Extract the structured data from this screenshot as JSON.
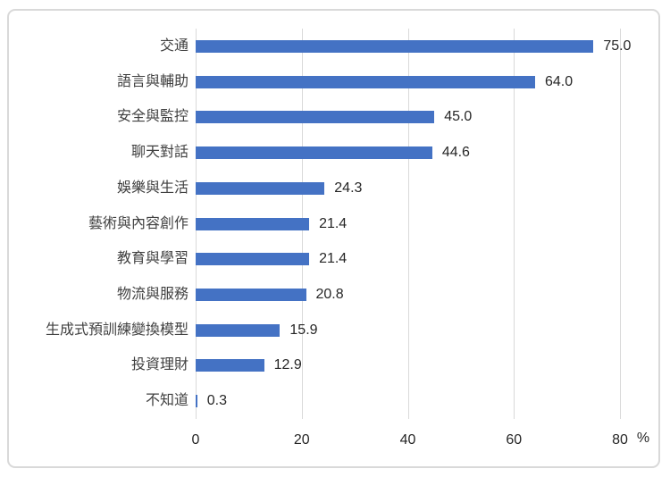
{
  "chart_data": {
    "type": "bar",
    "orientation": "horizontal",
    "categories": [
      "交通",
      "語言與輔助",
      "安全與監控",
      "聊天對話",
      "娛樂與生活",
      "藝術與內容創作",
      "教育與學習",
      "物流與服務",
      "生成式預訓練變換模型",
      "投資理財",
      "不知道"
    ],
    "values": [
      75.0,
      64.0,
      45.0,
      44.6,
      24.3,
      21.4,
      21.4,
      20.8,
      15.9,
      12.9,
      0.3
    ],
    "value_labels": [
      "75.0",
      "64.0",
      "45.0",
      "44.6",
      "24.3",
      "21.4",
      "21.4",
      "20.8",
      "15.9",
      "12.9",
      "0.3"
    ],
    "x_ticks": [
      "0",
      "20",
      "40",
      "60",
      "80"
    ],
    "x_tick_values": [
      0,
      20,
      40,
      60,
      80
    ],
    "xlim": [
      0,
      80
    ],
    "xlabel": "%",
    "title": "",
    "grid": true,
    "legend": false,
    "bar_color": "#4472C4",
    "gridline_color": "#d9d9d9",
    "frame_border_color": "#d9d9d9",
    "background_color": "#ffffff"
  }
}
